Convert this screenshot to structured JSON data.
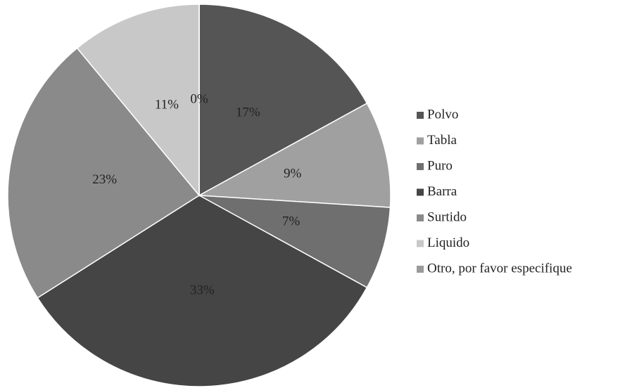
{
  "chart_data": {
    "type": "pie",
    "categories": [
      "Polvo",
      "Tabla",
      "Puro",
      "Barra",
      "Surtido",
      "Liquido",
      "Otro, por favor especifique"
    ],
    "values": [
      17,
      9,
      7,
      33,
      23,
      11,
      0
    ],
    "value_labels": [
      "17%",
      "9%",
      "7%",
      "33%",
      "23%",
      "11%",
      "0%"
    ],
    "colors": [
      "#555555",
      "#a0a0a0",
      "#6f6f6f",
      "#454545",
      "#8a8a8a",
      "#c8c8c8",
      "#9a9a9a"
    ],
    "legend": "right"
  }
}
